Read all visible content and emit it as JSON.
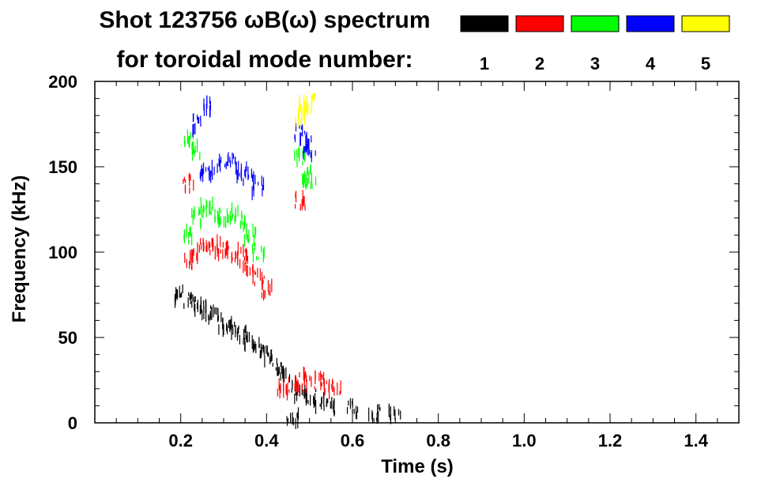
{
  "chart_data": {
    "type": "heatmap",
    "title_line1": "Shot 123756 ωB(ω) spectrum",
    "title_line2": "for toroidal mode number:",
    "xlabel": "Time (s)",
    "ylabel": "Frequency (kHz)",
    "xlim": [
      0.0,
      1.5
    ],
    "ylim": [
      0,
      200
    ],
    "x_ticks": [
      0.2,
      0.4,
      0.6,
      0.8,
      1.0,
      1.2,
      1.4
    ],
    "x_tick_labels": [
      "0.2",
      "0.4",
      "0.6",
      "0.8",
      "1.0",
      "1.2",
      "1.4"
    ],
    "y_ticks": [
      0,
      50,
      100,
      150,
      200
    ],
    "y_tick_labels": [
      "0",
      "50",
      "100",
      "150",
      "200"
    ],
    "legend_placement": "top",
    "grid": false,
    "modes": [
      {
        "label": "1",
        "color": "#000000"
      },
      {
        "label": "2",
        "color": "#ff0000"
      },
      {
        "label": "3",
        "color": "#00ff00"
      },
      {
        "label": "4",
        "color": "#0000ff"
      },
      {
        "label": "5",
        "color": "#ffff00"
      }
    ],
    "series": [
      {
        "mode": "1",
        "points": [
          [
            0.2,
            75
          ],
          [
            0.22,
            72
          ],
          [
            0.24,
            68
          ],
          [
            0.26,
            65
          ],
          [
            0.28,
            62
          ],
          [
            0.3,
            58
          ],
          [
            0.32,
            55
          ],
          [
            0.34,
            52
          ],
          [
            0.36,
            48
          ],
          [
            0.38,
            44
          ],
          [
            0.4,
            40
          ],
          [
            0.42,
            35
          ],
          [
            0.44,
            28
          ],
          [
            0.46,
            22
          ],
          [
            0.48,
            18
          ],
          [
            0.5,
            15
          ],
          [
            0.52,
            12
          ],
          [
            0.55,
            10
          ],
          [
            0.6,
            8
          ],
          [
            0.65,
            6
          ],
          [
            0.7,
            5
          ],
          [
            0.46,
            2
          ]
        ]
      },
      {
        "mode": "2",
        "points": [
          [
            0.22,
            95
          ],
          [
            0.24,
            100
          ],
          [
            0.26,
            104
          ],
          [
            0.28,
            103
          ],
          [
            0.3,
            102
          ],
          [
            0.32,
            100
          ],
          [
            0.34,
            97
          ],
          [
            0.36,
            92
          ],
          [
            0.38,
            85
          ],
          [
            0.4,
            78
          ],
          [
            0.22,
            140
          ],
          [
            0.48,
            130
          ],
          [
            0.44,
            20
          ],
          [
            0.46,
            22
          ],
          [
            0.48,
            24
          ],
          [
            0.5,
            25
          ],
          [
            0.52,
            24
          ],
          [
            0.54,
            22
          ],
          [
            0.56,
            20
          ]
        ]
      },
      {
        "mode": "3",
        "points": [
          [
            0.22,
            165
          ],
          [
            0.23,
            160
          ],
          [
            0.22,
            110
          ],
          [
            0.24,
            120
          ],
          [
            0.26,
            125
          ],
          [
            0.28,
            122
          ],
          [
            0.3,
            120
          ],
          [
            0.32,
            122
          ],
          [
            0.34,
            118
          ],
          [
            0.36,
            110
          ],
          [
            0.38,
            100
          ],
          [
            0.48,
            155
          ],
          [
            0.49,
            145
          ],
          [
            0.5,
            140
          ]
        ]
      },
      {
        "mode": "4",
        "points": [
          [
            0.24,
            175
          ],
          [
            0.26,
            185
          ],
          [
            0.26,
            145
          ],
          [
            0.28,
            148
          ],
          [
            0.3,
            150
          ],
          [
            0.32,
            152
          ],
          [
            0.34,
            148
          ],
          [
            0.36,
            145
          ],
          [
            0.38,
            138
          ],
          [
            0.48,
            170
          ],
          [
            0.49,
            165
          ],
          [
            0.5,
            160
          ]
        ]
      },
      {
        "mode": "5",
        "points": [
          [
            0.48,
            180
          ],
          [
            0.49,
            185
          ],
          [
            0.5,
            188
          ]
        ]
      }
    ]
  }
}
